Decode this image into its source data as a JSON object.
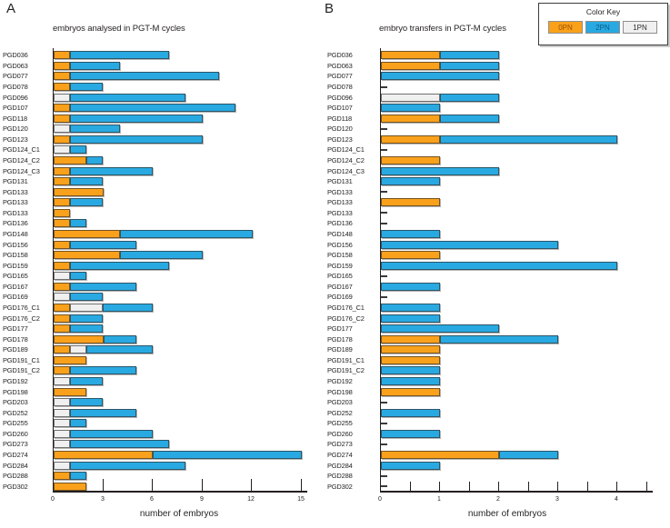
{
  "panels": {
    "a_letter": "A",
    "b_letter": "B"
  },
  "legend": {
    "title": "Color Key",
    "entries": [
      {
        "label": "0PN",
        "color": "#F9A11B",
        "text_color": "#9a4f00"
      },
      {
        "label": "2PN",
        "color": "#29A9E1",
        "text_color": "#0b5a85"
      },
      {
        "label": "1PN",
        "color": "#F0F0F0",
        "text_color": "#2b2b2b"
      }
    ]
  },
  "colors": {
    "0PN": "#F9A11B",
    "1PN": "#F0F0F0",
    "2PN": "#29A9E1",
    "axis": "#231f20"
  },
  "chart_data": [
    {
      "id": "A",
      "type": "bar",
      "subtype": "horizontal-stacked",
      "title": "embryos analysed in PGT-M cycles",
      "xlabel": "number of embryos",
      "xlim": [
        0,
        15
      ],
      "xticks": [
        0,
        3,
        6,
        9,
        12,
        15
      ],
      "minor_ticks": [],
      "grid": false,
      "categories": [
        "PGD036",
        "PGD063",
        "PGD077",
        "PGD078",
        "PGD096",
        "PGD107",
        "PGD118",
        "PGD120",
        "PGD123",
        "PGD124_C1",
        "PGD124_C2",
        "PGD124_C3",
        "PGD131",
        "PGD133",
        "PGD133",
        "PGD133",
        "PGD136",
        "PGD148",
        "PGD156",
        "PGD158",
        "PGD159",
        "PGD165",
        "PGD167",
        "PGD169",
        "PGD176_C1",
        "PGD176_C2",
        "PGD177",
        "PGD178",
        "PGD189",
        "PGD191_C1",
        "PGD191_C2",
        "PGD192",
        "PGD198",
        "PGD203",
        "PGD252",
        "PGD255",
        "PGD260",
        "PGD273",
        "PGD274",
        "PGD284",
        "PGD288",
        "PGD302"
      ],
      "series": [
        {
          "name": "0PN",
          "values": [
            1,
            1,
            1,
            1,
            0,
            1,
            1,
            0,
            1,
            0,
            2,
            1,
            1,
            3,
            1,
            1,
            1,
            4,
            1,
            4,
            1,
            0,
            1,
            0,
            1,
            1,
            1,
            3,
            1,
            2,
            1,
            0,
            2,
            0,
            0,
            0,
            0,
            0,
            6,
            0,
            1,
            2
          ]
        },
        {
          "name": "1PN",
          "values": [
            0,
            0,
            0,
            0,
            1,
            0,
            0,
            1,
            0,
            1,
            0,
            0,
            0,
            0,
            0,
            0,
            0,
            0,
            0,
            0,
            0,
            1,
            0,
            1,
            2,
            0,
            0,
            0,
            1,
            0,
            0,
            1,
            0,
            1,
            1,
            1,
            1,
            1,
            0,
            1,
            0,
            0
          ]
        },
        {
          "name": "2PN",
          "values": [
            6,
            3,
            9,
            2,
            7,
            10,
            8,
            3,
            8,
            1,
            1,
            5,
            2,
            0,
            2,
            0,
            1,
            8,
            4,
            5,
            6,
            1,
            4,
            2,
            3,
            2,
            2,
            2,
            4,
            0,
            4,
            2,
            0,
            2,
            4,
            1,
            5,
            6,
            9,
            7,
            1,
            0
          ]
        }
      ]
    },
    {
      "id": "B",
      "type": "bar",
      "subtype": "horizontal-stacked",
      "title": "embryo transfers in PGT-M cycles",
      "xlabel": "number of embryos",
      "xlim": [
        0,
        4
      ],
      "xticks": [
        0,
        1,
        2,
        3,
        4
      ],
      "minor_ticks": [
        0.5,
        1.5,
        2.5,
        3.5,
        4.5
      ],
      "grid": false,
      "categories": [
        "PGD036",
        "PGD063",
        "PGD077",
        "PGD078",
        "PGD096",
        "PGD107",
        "PGD118",
        "PGD120",
        "PGD123",
        "PGD124_C1",
        "PGD124_C2",
        "PGD124_C3",
        "PGD131",
        "PGD133",
        "PGD133",
        "PGD133",
        "PGD136",
        "PGD148",
        "PGD156",
        "PGD158",
        "PGD159",
        "PGD165",
        "PGD167",
        "PGD169",
        "PGD176_C1",
        "PGD176_C2",
        "PGD177",
        "PGD178",
        "PGD189",
        "PGD191_C1",
        "PGD191_C2",
        "PGD192",
        "PGD198",
        "PGD203",
        "PGD252",
        "PGD255",
        "PGD260",
        "PGD273",
        "PGD274",
        "PGD284",
        "PGD288",
        "PGD302"
      ],
      "series": [
        {
          "name": "0PN",
          "values": [
            1,
            1,
            0,
            0,
            0,
            0,
            1,
            0,
            1,
            0,
            1,
            0,
            0,
            0,
            1,
            0,
            0,
            0,
            0,
            1,
            0,
            0,
            0,
            0,
            0,
            0,
            0,
            1,
            1,
            1,
            0,
            0,
            1,
            0,
            0,
            0,
            0,
            0,
            2,
            0,
            0,
            0
          ]
        },
        {
          "name": "1PN",
          "values": [
            0,
            0,
            0,
            0,
            1,
            0,
            0,
            0,
            0,
            0,
            0,
            0,
            0,
            0,
            0,
            0,
            0,
            0,
            0,
            0,
            0,
            0,
            0,
            0,
            0,
            0,
            0,
            0,
            0,
            0,
            0,
            0,
            0,
            0,
            0,
            0,
            0,
            0,
            0,
            0,
            0,
            0
          ]
        },
        {
          "name": "2PN",
          "values": [
            1,
            1,
            2,
            0,
            1,
            1,
            1,
            0,
            3,
            0,
            0,
            2,
            1,
            0,
            0,
            0,
            0,
            1,
            3,
            0,
            4,
            0,
            1,
            0,
            1,
            1,
            2,
            2,
            0,
            0,
            1,
            1,
            0,
            0,
            1,
            0,
            1,
            0,
            1,
            1,
            0,
            0
          ]
        }
      ]
    }
  ]
}
